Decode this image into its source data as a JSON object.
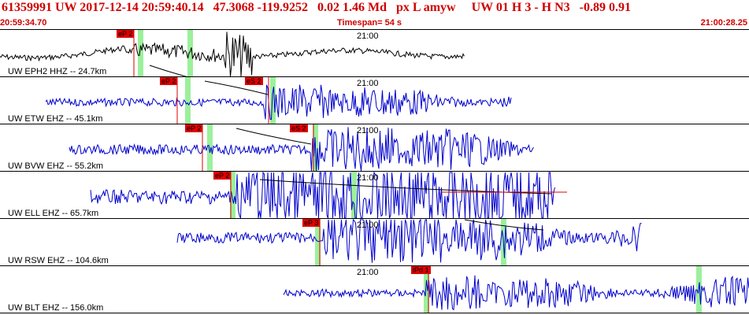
{
  "header": {
    "event": "61359991 UW 2017-12-14 20:59:40.14",
    "location": "47.3068 -119.9252",
    "magnitude": "0.02  1.46 Md",
    "flags": "px  L amyw",
    "channel_info": "UW 01  H   3  -  H N3",
    "values": "-0.89  0.91"
  },
  "time_bar": {
    "start": "20:59:34.70",
    "span": "Timespan=  54 s",
    "end": "21:00:28.25"
  },
  "trace_color_primary": "#0000cc",
  "trace_color_first": "#000000",
  "pick_color": "#e00000",
  "window_color": "#9cf09c",
  "panels": [
    {
      "label": "UW EPH2 HHZ -- 24.7km",
      "time": "21:00",
      "picks": [
        "eP 2"
      ]
    },
    {
      "label": "UW ETW EHZ -- 45.1km",
      "time": "21:00",
      "picks": [
        "eP 2",
        "eS 2"
      ]
    },
    {
      "label": "UW BVW EHZ -- 55.2km",
      "time": "21:00",
      "picks": [
        "eP 2",
        "eS 2"
      ]
    },
    {
      "label": "UW ELL EHZ -- 65.7km",
      "time": "21:00",
      "picks": [
        "eP 2"
      ]
    },
    {
      "label": "UW RSW EHZ -- 104.6km",
      "time": "21:00",
      "picks": [
        "eP 3"
      ]
    },
    {
      "label": "UW BLT EHZ -- 156.0km",
      "time": "21:00",
      "picks": [
        "iPd 1"
      ]
    }
  ]
}
